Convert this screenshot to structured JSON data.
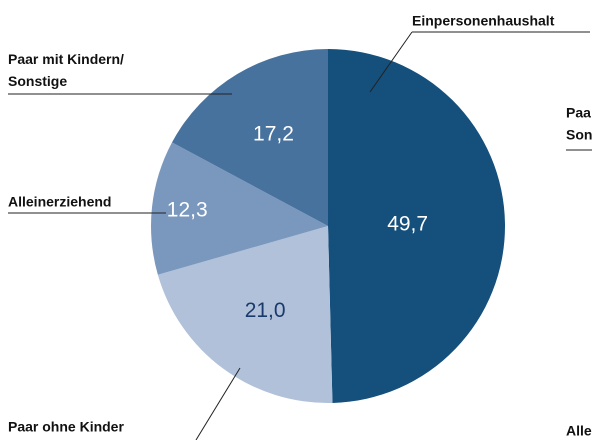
{
  "chart_data": {
    "type": "pie",
    "categories": [
      "Einpersonenhaushalt",
      "Paar ohne Kinder",
      "Alleinerziehend",
      "Paar mit Kindern/\nSonstige"
    ],
    "values": [
      49.7,
      21.0,
      12.3,
      17.2
    ],
    "value_labels": [
      "49,7",
      "21,0",
      "12,3",
      "17,2"
    ],
    "colors": [
      "#154f7c",
      "#b1c1da",
      "#7a98bd",
      "#48729e"
    ],
    "annotations": [
      "Paa",
      "Son",
      "Alle"
    ]
  }
}
